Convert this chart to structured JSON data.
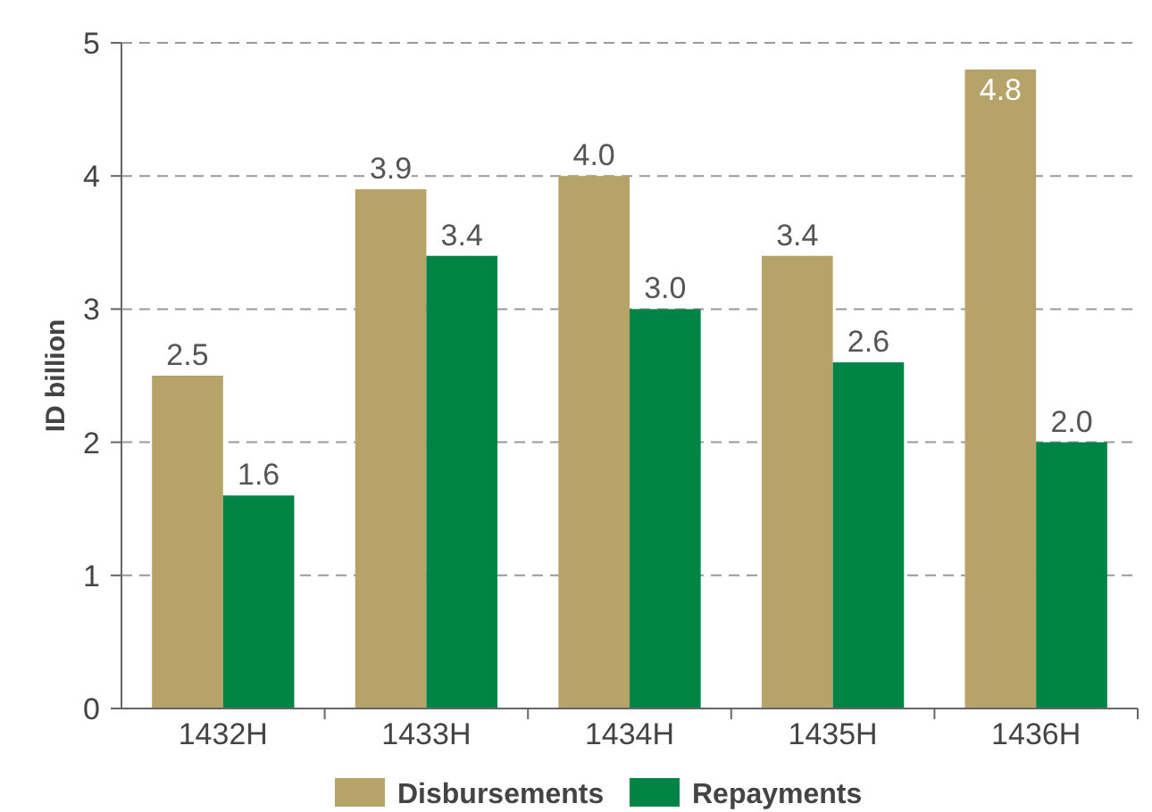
{
  "chart_data": {
    "type": "bar",
    "ylabel": "ID billion",
    "categories": [
      "1432H",
      "1433H",
      "1434H",
      "1435H",
      "1436H"
    ],
    "series": [
      {
        "name": "Disbursements",
        "color": "#b5a36a",
        "values": [
          2.5,
          3.9,
          4.0,
          3.4,
          4.8
        ],
        "value_labels": [
          "2.5",
          "3.9",
          "4.0",
          "3.4",
          "4.8"
        ]
      },
      {
        "name": "Repayments",
        "color": "#008446",
        "values": [
          1.6,
          3.4,
          3.0,
          2.6,
          2.0
        ],
        "value_labels": [
          "1.6",
          "3.4",
          "3.0",
          "2.6",
          "2.0"
        ]
      }
    ],
    "ylim": [
      0,
      5
    ],
    "yticks": [
      0,
      1,
      2,
      3,
      4,
      5
    ],
    "grid": "y",
    "legend": "bottom"
  }
}
